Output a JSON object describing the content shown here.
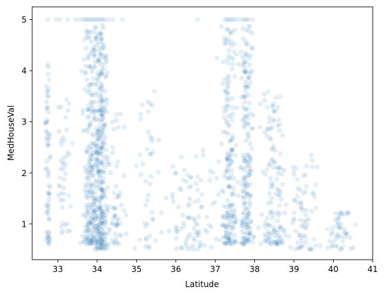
{
  "chart_data": {
    "type": "scatter",
    "title": "",
    "xlabel": "Latitude",
    "ylabel": "MedHouseVal",
    "xlim": [
      32.35,
      41.0
    ],
    "ylim": [
      0.3,
      5.25
    ],
    "xticks": [
      "33",
      "34",
      "35",
      "36",
      "37",
      "38",
      "39",
      "40",
      "41"
    ],
    "yticks": [
      "1",
      "2",
      "3",
      "4",
      "5"
    ],
    "grid": false,
    "legend": "none",
    "marker_color": "#1f77b4",
    "marker_alpha": 0.12,
    "clusters": [
      {
        "lat": 32.75,
        "lat_spread": 0.07,
        "value_range": [
          0.6,
          4.2
        ],
        "count": 70
      },
      {
        "lat": 33.15,
        "lat_spread": 0.18,
        "value_range": [
          0.8,
          3.5
        ],
        "count": 45
      },
      {
        "lat": 33.85,
        "lat_spread": 0.22,
        "value_range": [
          0.6,
          4.8
        ],
        "count": 260
      },
      {
        "lat": 34.1,
        "lat_spread": 0.15,
        "value_range": [
          0.5,
          4.9
        ],
        "count": 330
      },
      {
        "lat": 34.45,
        "lat_spread": 0.25,
        "value_range": [
          0.6,
          3.2
        ],
        "count": 60
      },
      {
        "lat": 35.3,
        "lat_spread": 0.3,
        "value_range": [
          0.5,
          3.6
        ],
        "count": 45
      },
      {
        "lat": 36.4,
        "lat_spread": 0.5,
        "value_range": [
          0.5,
          2.5
        ],
        "count": 90
      },
      {
        "lat": 37.35,
        "lat_spread": 0.2,
        "value_range": [
          0.6,
          4.9
        ],
        "count": 200
      },
      {
        "lat": 37.8,
        "lat_spread": 0.15,
        "value_range": [
          0.6,
          4.9
        ],
        "count": 200
      },
      {
        "lat": 38.5,
        "lat_spread": 0.3,
        "value_range": [
          0.6,
          3.6
        ],
        "count": 140
      },
      {
        "lat": 39.2,
        "lat_spread": 0.35,
        "value_range": [
          0.5,
          2.4
        ],
        "count": 70
      },
      {
        "lat": 40.2,
        "lat_spread": 0.35,
        "value_range": [
          0.5,
          1.3
        ],
        "count": 50
      }
    ],
    "capped_value": 5.0,
    "capped_points": [
      32.75,
      32.95,
      33.05,
      33.25,
      33.45,
      33.55,
      33.65,
      33.7,
      33.75,
      33.8,
      33.85,
      33.9,
      33.95,
      34.0,
      34.05,
      34.1,
      34.15,
      34.2,
      34.3,
      34.4,
      34.65,
      36.55,
      37.25,
      37.3,
      37.35,
      37.4,
      37.45,
      37.5,
      37.6,
      37.7,
      37.75,
      37.8,
      37.85,
      37.95
    ]
  }
}
